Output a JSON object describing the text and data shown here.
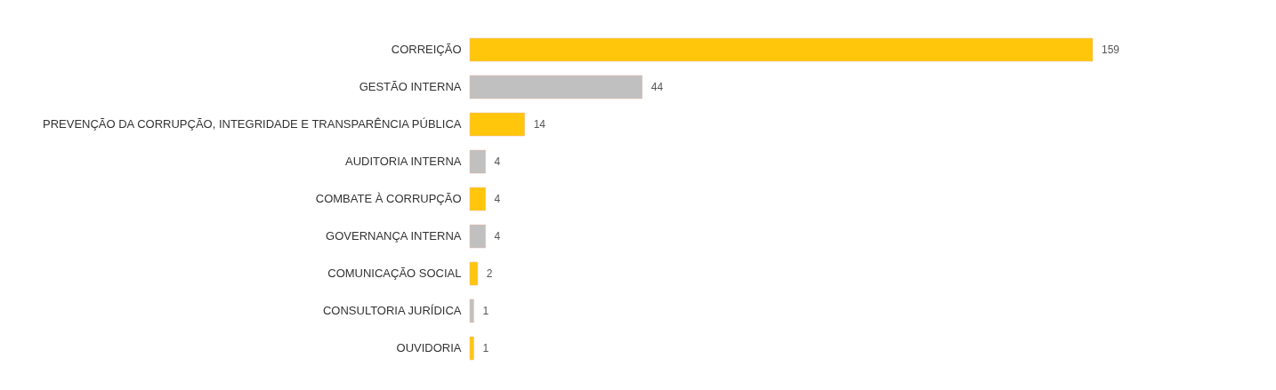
{
  "chart_data": {
    "type": "bar",
    "orientation": "horizontal",
    "data_labels": true,
    "categories": [
      "CORREIÇÃO",
      "GESTÃO INTERNA",
      "PREVENÇÃO DA CORRUPÇÃO, INTEGRIDADE E TRANSPARÊNCIA PÚBLICA",
      "AUDITORIA INTERNA",
      "COMBATE À CORRUPÇÃO",
      "GOVERNANÇA INTERNA",
      "COMUNICAÇÃO SOCIAL",
      "CONSULTORIA JURÍDICA",
      "OUVIDORIA"
    ],
    "values": [
      159,
      44,
      14,
      4,
      4,
      4,
      2,
      1,
      1
    ],
    "colors": [
      "#ffc60b",
      "#c0c0c0",
      "#ffc60b",
      "#c0c0c0",
      "#ffc60b",
      "#c0c0c0",
      "#ffc60b",
      "#c0c0c0",
      "#ffc60b"
    ],
    "grid": false
  }
}
